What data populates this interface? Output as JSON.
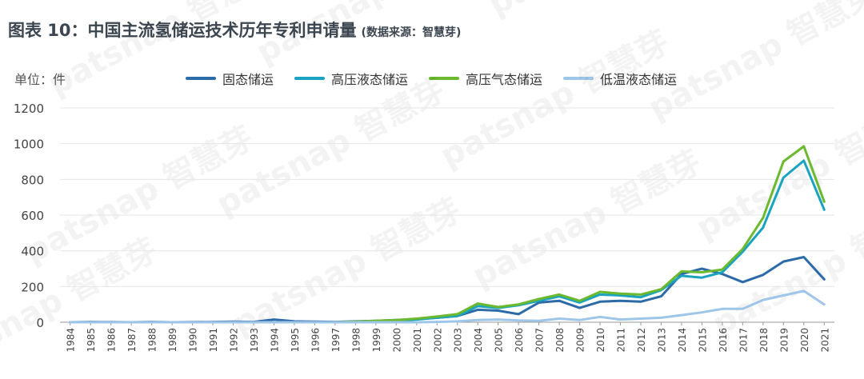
{
  "title": "图表 10：中国主流氢储运技术历年专利申请量",
  "source": "(数据来源：智慧芽)",
  "unit_label": "单位：件",
  "watermark": "patsnap 智慧芽",
  "chart_data": {
    "type": "line",
    "title": "图表 10：中国主流氢储运技术历年专利申请量",
    "ylabel": "单位：件",
    "xlabel": "",
    "ylim": [
      0,
      1200
    ],
    "yticks": [
      0,
      200,
      400,
      600,
      800,
      1000,
      1200
    ],
    "grid": true,
    "legend_position": "top",
    "x": [
      "1984",
      "1985",
      "1986",
      "1987",
      "1988",
      "1989",
      "1990",
      "1991",
      "1992",
      "1993",
      "1994",
      "1995",
      "1996",
      "1997",
      "1998",
      "1999",
      "2000",
      "2001",
      "2002",
      "2003",
      "2004",
      "2005",
      "2006",
      "2007",
      "2008",
      "2009",
      "2010",
      "2011",
      "2012",
      "2013",
      "2014",
      "2015",
      "2016",
      "2017",
      "2018",
      "2019",
      "2020",
      "2021"
    ],
    "series": [
      {
        "name": "固态储运",
        "color": "#2c6aa8",
        "values": [
          0,
          2,
          1,
          0,
          2,
          0,
          1,
          2,
          3,
          2,
          15,
          5,
          3,
          2,
          5,
          8,
          12,
          18,
          25,
          35,
          70,
          65,
          45,
          110,
          120,
          80,
          115,
          120,
          115,
          145,
          270,
          300,
          270,
          225,
          265,
          340,
          365,
          240
        ]
      },
      {
        "name": "高压液态储运",
        "color": "#1aa3c0",
        "values": [
          0,
          0,
          0,
          0,
          0,
          0,
          0,
          0,
          0,
          0,
          0,
          0,
          0,
          0,
          2,
          5,
          8,
          15,
          25,
          35,
          90,
          80,
          95,
          120,
          145,
          110,
          155,
          150,
          140,
          180,
          260,
          250,
          280,
          395,
          530,
          810,
          905,
          630
        ]
      },
      {
        "name": "高压气态储运",
        "color": "#6ab92e",
        "values": [
          0,
          0,
          0,
          0,
          0,
          0,
          0,
          0,
          0,
          0,
          0,
          0,
          0,
          0,
          3,
          8,
          12,
          20,
          32,
          45,
          105,
          85,
          100,
          130,
          155,
          120,
          170,
          160,
          155,
          185,
          285,
          280,
          295,
          410,
          585,
          900,
          985,
          675
        ]
      },
      {
        "name": "低温液态储运",
        "color": "#9ec6e8",
        "values": [
          0,
          0,
          0,
          0,
          0,
          0,
          0,
          0,
          0,
          0,
          0,
          0,
          0,
          0,
          0,
          0,
          0,
          0,
          2,
          5,
          12,
          15,
          10,
          8,
          20,
          12,
          30,
          15,
          20,
          25,
          40,
          55,
          75,
          75,
          125,
          150,
          175,
          100
        ]
      }
    ]
  }
}
